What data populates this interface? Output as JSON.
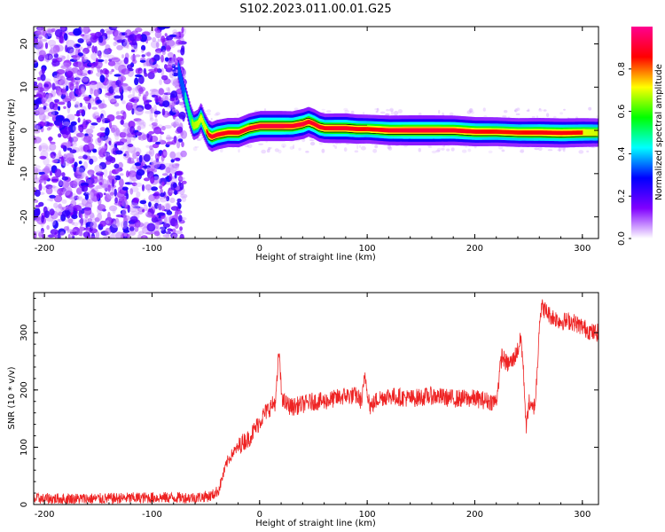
{
  "title": "S102.2023.011.00.01.G25",
  "chart_data": [
    {
      "type": "heatmap",
      "xlabel": "Height of straight line (km)",
      "ylabel": "Frequency (Hz)",
      "xlim": [
        -210,
        315
      ],
      "ylim": [
        -25,
        24
      ],
      "xticks": [
        -200,
        -100,
        0,
        100,
        200,
        300
      ],
      "yticks": [
        -20,
        -10,
        0,
        10,
        20
      ],
      "colorbar": {
        "label": "Normalized spectral amplitude",
        "range": [
          0,
          1
        ],
        "ticks": [
          "0.0",
          "0.2",
          "0.4",
          "0.6",
          "0.8"
        ],
        "tick_values": [
          0.0,
          0.2,
          0.4,
          0.6,
          0.8
        ],
        "colormap": [
          "#ffffff",
          "#8000ff",
          "#0000ff",
          "#00ffff",
          "#00ff00",
          "#ffff00",
          "#ff0000",
          "#ff0090"
        ]
      },
      "noise_region_x": [
        -210,
        -70
      ],
      "ridge": {
        "x": [
          -76,
          -72,
          -68,
          -65,
          -62,
          -58,
          -55,
          -52,
          -48,
          -45,
          -40,
          -30,
          -20,
          -10,
          0,
          10,
          20,
          30,
          40,
          45,
          50,
          55,
          60,
          70,
          80,
          90,
          100,
          120,
          140,
          160,
          180,
          200,
          220,
          240,
          260,
          280,
          300,
          315
        ],
        "y": [
          14,
          10,
          6,
          3,
          1,
          1.5,
          3,
          1,
          -1,
          -1.5,
          -1,
          -0.5,
          -0.5,
          0.5,
          1,
          1,
          1,
          1,
          1.5,
          2,
          1.5,
          0.8,
          0.5,
          0.5,
          0.5,
          0.3,
          0.3,
          0,
          0,
          0,
          0,
          -0.3,
          -0.3,
          -0.5,
          -0.5,
          -0.6,
          -0.5,
          -0.5
        ],
        "amplitude": [
          0.45,
          0.45,
          0.55,
          0.6,
          0.7,
          0.75,
          0.8,
          0.75,
          0.85,
          0.9,
          0.9,
          0.85,
          0.88,
          0.9,
          0.95,
          0.95,
          0.95,
          0.9,
          0.95,
          0.9,
          0.9,
          0.9,
          0.85,
          0.9,
          0.9,
          0.85,
          0.8,
          0.9,
          0.95,
          0.95,
          0.9,
          0.85,
          0.8,
          0.8,
          0.85,
          0.85,
          0.8,
          0.75
        ]
      }
    },
    {
      "type": "line",
      "xlabel": "Height of straight line (km)",
      "ylabel": "SNR (10 * v/v)",
      "xlim": [
        -210,
        315
      ],
      "ylim": [
        0,
        370
      ],
      "xticks": [
        -200,
        -100,
        0,
        100,
        200,
        300
      ],
      "yticks": [
        0,
        100,
        200,
        300
      ],
      "series": [
        {
          "color": "#ee2222",
          "x": [
            -210,
            -150,
            -100,
            -60,
            -45,
            -38,
            -35,
            -30,
            -25,
            -20,
            -15,
            -10,
            -5,
            0,
            5,
            10,
            15,
            18,
            20,
            22,
            25,
            30,
            40,
            50,
            60,
            70,
            80,
            90,
            95,
            98,
            100,
            103,
            110,
            120,
            140,
            160,
            180,
            200,
            215,
            220,
            225,
            230,
            235,
            240,
            243,
            245,
            248,
            250,
            253,
            256,
            258,
            260,
            262,
            265,
            270,
            280,
            290,
            300,
            310,
            315
          ],
          "y": [
            10,
            10,
            12,
            12,
            15,
            25,
            45,
            75,
            90,
            100,
            110,
            115,
            130,
            145,
            160,
            170,
            180,
            270,
            200,
            180,
            175,
            170,
            175,
            180,
            180,
            185,
            190,
            190,
            180,
            225,
            200,
            170,
            185,
            190,
            185,
            190,
            185,
            185,
            180,
            180,
            260,
            245,
            250,
            270,
            290,
            240,
            130,
            180,
            165,
            175,
            230,
            320,
            345,
            340,
            330,
            320,
            320,
            310,
            300,
            300
          ],
          "noise_amplitude": 10
        }
      ]
    }
  ]
}
